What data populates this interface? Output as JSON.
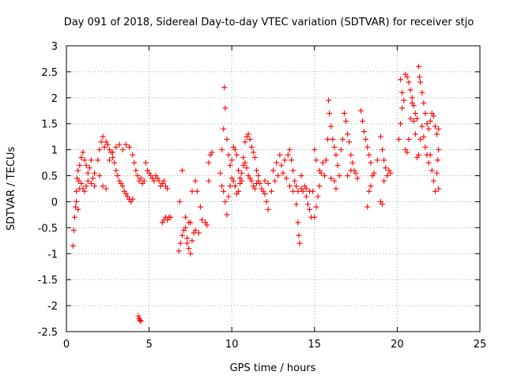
{
  "chart_data": {
    "type": "scatter",
    "title": "Day 091 of 2018, Sidereal Day-to-day VTEC variation (SDTVAR) for receiver stjo",
    "xlabel": "GPS time / hours",
    "ylabel": "SDTVAR / TECUs",
    "xlim": [
      0,
      25
    ],
    "ylim": [
      -2.5,
      3
    ],
    "xticks": [
      0,
      5,
      10,
      15,
      20,
      25
    ],
    "xtick_labels": [
      "0",
      "5",
      "10",
      "15",
      "20",
      "25"
    ],
    "yticks": [
      -2.5,
      -2,
      -1.5,
      -1,
      -0.5,
      0,
      0.5,
      1,
      1.5,
      2,
      2.5,
      3
    ],
    "ytick_labels": [
      "-2.5",
      "-2",
      "-1.5",
      "-1",
      "-0.5",
      "0",
      "0.5",
      "1",
      "1.5",
      "2",
      "2.5",
      "3"
    ],
    "grid": true,
    "marker": "+",
    "color": "#ff0000",
    "series": [
      {
        "name": "SDTVAR",
        "points": [
          [
            0.4,
            -0.85
          ],
          [
            0.45,
            -0.55
          ],
          [
            0.5,
            -0.3
          ],
          [
            0.55,
            -0.1
          ],
          [
            0.6,
            0.2
          ],
          [
            0.65,
            0.45
          ],
          [
            0.7,
            0.6
          ],
          [
            0.75,
            0.4
          ],
          [
            0.8,
            0.7
          ],
          [
            0.9,
            0.85
          ],
          [
            1.0,
            0.95
          ],
          [
            1.1,
            0.8
          ],
          [
            1.2,
            0.7
          ],
          [
            1.3,
            0.55
          ],
          [
            1.4,
            0.65
          ],
          [
            1.5,
            0.8
          ],
          [
            1.6,
            0.45
          ],
          [
            1.7,
            0.3
          ],
          [
            0.6,
            0.0
          ],
          [
            0.7,
            -0.15
          ],
          [
            0.8,
            0.25
          ],
          [
            0.9,
            0.35
          ],
          [
            1.0,
            0.25
          ],
          [
            1.1,
            0.2
          ],
          [
            1.2,
            0.3
          ],
          [
            1.3,
            0.4
          ],
          [
            1.5,
            0.35
          ],
          [
            1.7,
            0.55
          ],
          [
            1.9,
            0.8
          ],
          [
            2.0,
            1.0
          ],
          [
            2.1,
            1.15
          ],
          [
            2.2,
            1.25
          ],
          [
            2.3,
            1.05
          ],
          [
            2.4,
            1.15
          ],
          [
            2.5,
            1.1
          ],
          [
            2.6,
            1.0
          ],
          [
            2.7,
            0.95
          ],
          [
            2.8,
            0.85
          ],
          [
            2.9,
            0.75
          ],
          [
            3.0,
            0.6
          ],
          [
            3.1,
            0.5
          ],
          [
            3.2,
            0.4
          ],
          [
            3.3,
            0.35
          ],
          [
            3.4,
            0.3
          ],
          [
            3.5,
            0.2
          ],
          [
            3.6,
            0.15
          ],
          [
            3.7,
            0.1
          ],
          [
            3.8,
            0.05
          ],
          [
            3.9,
            0.0
          ],
          [
            4.0,
            0.05
          ],
          [
            2.0,
            0.5
          ],
          [
            2.2,
            0.3
          ],
          [
            2.4,
            0.25
          ],
          [
            2.6,
            0.8
          ],
          [
            2.8,
            0.95
          ],
          [
            3.0,
            1.05
          ],
          [
            3.2,
            1.1
          ],
          [
            3.4,
            1.0
          ],
          [
            3.6,
            1.1
          ],
          [
            3.8,
            1.05
          ],
          [
            4.0,
            0.9
          ],
          [
            4.1,
            0.75
          ],
          [
            4.2,
            0.6
          ],
          [
            4.3,
            0.5
          ],
          [
            4.4,
            0.4
          ],
          [
            4.5,
            0.45
          ],
          [
            4.6,
            0.35
          ],
          [
            4.7,
            0.4
          ],
          [
            4.8,
            0.75
          ],
          [
            4.9,
            0.6
          ],
          [
            5.0,
            0.55
          ],
          [
            5.1,
            0.5
          ],
          [
            5.2,
            0.45
          ],
          [
            5.3,
            0.4
          ],
          [
            5.4,
            0.5
          ],
          [
            5.5,
            0.45
          ],
          [
            5.6,
            0.4
          ],
          [
            5.7,
            0.3
          ],
          [
            5.8,
            0.35
          ],
          [
            5.9,
            0.4
          ],
          [
            6.0,
            0.3
          ],
          [
            6.1,
            0.25
          ],
          [
            4.35,
            -2.2
          ],
          [
            4.4,
            -2.25
          ],
          [
            4.45,
            -2.28
          ],
          [
            4.5,
            -2.3
          ],
          [
            5.8,
            -0.4
          ],
          [
            5.9,
            -0.35
          ],
          [
            6.0,
            -0.3
          ],
          [
            6.1,
            -0.35
          ],
          [
            6.2,
            -0.3
          ],
          [
            6.3,
            -0.3
          ],
          [
            6.8,
            -0.95
          ],
          [
            6.9,
            -0.8
          ],
          [
            7.0,
            -0.65
          ],
          [
            7.1,
            -0.55
          ],
          [
            7.2,
            -0.5
          ],
          [
            7.3,
            -0.7
          ],
          [
            7.4,
            -0.9
          ],
          [
            7.5,
            -1.0
          ],
          [
            7.6,
            -0.75
          ],
          [
            7.7,
            -0.6
          ],
          [
            6.85,
            0.0
          ],
          [
            7.0,
            0.6
          ],
          [
            7.2,
            -0.3
          ],
          [
            7.4,
            -0.4
          ],
          [
            7.6,
            0.2
          ],
          [
            7.8,
            0.4
          ],
          [
            7.9,
            0.2
          ],
          [
            7.8,
            -0.55
          ],
          [
            8.0,
            -0.6
          ],
          [
            8.1,
            -0.1
          ],
          [
            8.2,
            -0.35
          ],
          [
            8.4,
            -0.4
          ],
          [
            8.5,
            -0.45
          ],
          [
            8.6,
            0.4
          ],
          [
            8.7,
            0.9
          ],
          [
            8.8,
            0.95
          ],
          [
            8.6,
            0.75
          ],
          [
            7.5,
            -0.4
          ],
          [
            7.3,
            -0.8
          ],
          [
            9.3,
            0.55
          ],
          [
            9.4,
            1.0
          ],
          [
            9.5,
            1.4
          ],
          [
            9.55,
            2.2
          ],
          [
            9.6,
            1.8
          ],
          [
            9.7,
            1.2
          ],
          [
            9.8,
            0.9
          ],
          [
            9.9,
            0.7
          ],
          [
            10.0,
            0.8
          ],
          [
            10.1,
            1.05
          ],
          [
            10.2,
            1.0
          ],
          [
            10.3,
            0.9
          ],
          [
            10.4,
            0.6
          ],
          [
            10.5,
            0.45
          ],
          [
            10.6,
            0.4
          ],
          [
            10.7,
            0.85
          ],
          [
            10.8,
            1.15
          ],
          [
            10.9,
            1.25
          ],
          [
            11.0,
            1.3
          ],
          [
            11.1,
            1.2
          ],
          [
            11.2,
            1.05
          ],
          [
            11.3,
            0.95
          ],
          [
            11.4,
            0.85
          ],
          [
            11.5,
            0.6
          ],
          [
            11.6,
            0.4
          ],
          [
            11.7,
            0.35
          ],
          [
            11.8,
            0.25
          ],
          [
            11.9,
            0.2
          ],
          [
            12.0,
            0.15
          ],
          [
            12.1,
            0.0
          ],
          [
            12.2,
            -0.15
          ],
          [
            9.4,
            0.3
          ],
          [
            9.5,
            0.2
          ],
          [
            9.6,
            0.0
          ],
          [
            9.7,
            -0.25
          ],
          [
            9.8,
            0.1
          ],
          [
            9.9,
            0.3
          ],
          [
            10.0,
            0.45
          ],
          [
            10.1,
            0.4
          ],
          [
            10.2,
            0.3
          ],
          [
            10.3,
            0.15
          ],
          [
            10.4,
            0.2
          ],
          [
            10.5,
            0.35
          ],
          [
            10.6,
            0.55
          ],
          [
            10.7,
            0.7
          ],
          [
            10.8,
            0.75
          ],
          [
            10.9,
            0.65
          ],
          [
            11.0,
            0.5
          ],
          [
            11.1,
            0.45
          ],
          [
            11.2,
            0.4
          ],
          [
            11.3,
            0.3
          ],
          [
            11.4,
            0.25
          ],
          [
            11.5,
            0.35
          ],
          [
            11.6,
            0.5
          ],
          [
            12.0,
            0.4
          ],
          [
            12.2,
            0.35
          ],
          [
            12.4,
            0.2
          ],
          [
            12.6,
            0.4
          ],
          [
            12.8,
            0.5
          ],
          [
            13.0,
            0.7
          ],
          [
            13.2,
            0.8
          ],
          [
            13.4,
            0.9
          ],
          [
            13.5,
            1.0
          ],
          [
            13.6,
            0.8
          ],
          [
            13.7,
            0.6
          ],
          [
            13.8,
            0.4
          ],
          [
            13.9,
            0.3
          ],
          [
            14.0,
            0.2
          ],
          [
            12.5,
            0.6
          ],
          [
            12.7,
            0.75
          ],
          [
            12.9,
            0.9
          ],
          [
            13.1,
            0.55
          ],
          [
            13.3,
            0.45
          ],
          [
            13.5,
            0.3
          ],
          [
            13.7,
            0.2
          ],
          [
            13.9,
            -0.05
          ],
          [
            14.0,
            -0.4
          ],
          [
            14.05,
            -0.65
          ],
          [
            14.1,
            -0.8
          ],
          [
            14.2,
            0.25
          ],
          [
            14.3,
            0.2
          ],
          [
            14.2,
            0.5
          ],
          [
            14.4,
            0.3
          ],
          [
            14.5,
            0.1
          ],
          [
            14.6,
            -0.05
          ],
          [
            14.7,
            -0.15
          ],
          [
            14.8,
            -0.3
          ],
          [
            14.9,
            0.2
          ],
          [
            14.7,
            0.2
          ],
          [
            14.5,
            0.25
          ],
          [
            15.0,
            -0.3
          ],
          [
            15.1,
            -0.1
          ],
          [
            15.2,
            0.1
          ],
          [
            15.3,
            0.3
          ],
          [
            15.4,
            0.55
          ],
          [
            15.5,
            0.75
          ],
          [
            15.0,
            1.0
          ],
          [
            15.1,
            0.8
          ],
          [
            15.3,
            0.6
          ],
          [
            15.6,
            0.5
          ],
          [
            15.7,
            0.8
          ],
          [
            15.8,
            1.2
          ],
          [
            15.85,
            1.95
          ],
          [
            15.9,
            1.7
          ],
          [
            16.0,
            1.45
          ],
          [
            16.1,
            1.2
          ],
          [
            16.2,
            1.05
          ],
          [
            16.3,
            0.9
          ],
          [
            16.4,
            0.7
          ],
          [
            16.5,
            0.5
          ],
          [
            16.2,
            0.4
          ],
          [
            16.3,
            0.25
          ],
          [
            16.0,
            0.45
          ],
          [
            16.6,
            1.0
          ],
          [
            16.7,
            1.2
          ],
          [
            16.8,
            1.7
          ],
          [
            16.9,
            1.55
          ],
          [
            17.0,
            1.3
          ],
          [
            17.1,
            1.15
          ],
          [
            17.2,
            0.9
          ],
          [
            17.3,
            0.75
          ],
          [
            17.4,
            0.6
          ],
          [
            17.5,
            0.55
          ],
          [
            17.6,
            0.45
          ],
          [
            17.0,
            0.5
          ],
          [
            17.2,
            0.6
          ],
          [
            17.8,
            1.75
          ],
          [
            17.9,
            1.55
          ],
          [
            18.0,
            1.35
          ],
          [
            18.1,
            1.2
          ],
          [
            18.2,
            1.05
          ],
          [
            18.3,
            0.9
          ],
          [
            18.4,
            0.75
          ],
          [
            18.5,
            0.5
          ],
          [
            18.2,
            -0.1
          ],
          [
            18.3,
            0.2
          ],
          [
            18.4,
            0.3
          ],
          [
            18.6,
            0.55
          ],
          [
            18.8,
            0.8
          ],
          [
            19.0,
            1.25
          ],
          [
            19.1,
            1.0
          ],
          [
            19.2,
            0.8
          ],
          [
            19.3,
            0.65
          ],
          [
            19.0,
            0.0
          ],
          [
            19.1,
            -0.05
          ],
          [
            19.2,
            0.4
          ],
          [
            19.4,
            0.5
          ],
          [
            19.5,
            0.6
          ],
          [
            19.6,
            0.55
          ],
          [
            20.2,
            2.35
          ],
          [
            20.3,
            2.1
          ],
          [
            20.4,
            1.95
          ],
          [
            20.5,
            2.45
          ],
          [
            20.6,
            2.4
          ],
          [
            20.7,
            2.3
          ],
          [
            20.8,
            2.15
          ],
          [
            20.9,
            2.0
          ],
          [
            21.0,
            1.85
          ],
          [
            21.1,
            1.7
          ],
          [
            21.2,
            1.6
          ],
          [
            21.3,
            2.6
          ],
          [
            21.35,
            2.4
          ],
          [
            21.4,
            2.3
          ],
          [
            21.5,
            2.1
          ],
          [
            21.6,
            1.9
          ],
          [
            21.7,
            1.7
          ],
          [
            21.8,
            1.5
          ],
          [
            21.9,
            1.4
          ],
          [
            22.0,
            1.55
          ],
          [
            22.1,
            1.7
          ],
          [
            22.2,
            1.65
          ],
          [
            22.3,
            1.45
          ],
          [
            22.4,
            1.3
          ],
          [
            22.5,
            1.4
          ],
          [
            20.1,
            1.2
          ],
          [
            20.2,
            1.5
          ],
          [
            20.3,
            1.8
          ],
          [
            20.5,
            1.0
          ],
          [
            20.6,
            0.95
          ],
          [
            20.7,
            1.2
          ],
          [
            20.8,
            1.6
          ],
          [
            20.9,
            1.9
          ],
          [
            21.0,
            1.55
          ],
          [
            21.1,
            1.3
          ],
          [
            21.2,
            0.85
          ],
          [
            21.3,
            0.9
          ],
          [
            21.4,
            1.2
          ],
          [
            21.5,
            1.45
          ],
          [
            21.6,
            1.25
          ],
          [
            21.7,
            1.05
          ],
          [
            21.8,
            0.9
          ],
          [
            21.9,
            0.75
          ],
          [
            22.0,
            0.9
          ],
          [
            22.1,
            0.6
          ],
          [
            22.2,
            0.4
          ],
          [
            22.3,
            0.2
          ],
          [
            22.4,
            0.55
          ],
          [
            22.5,
            1.0
          ],
          [
            22.45,
            0.8
          ],
          [
            22.5,
            0.25
          ]
        ]
      }
    ]
  }
}
